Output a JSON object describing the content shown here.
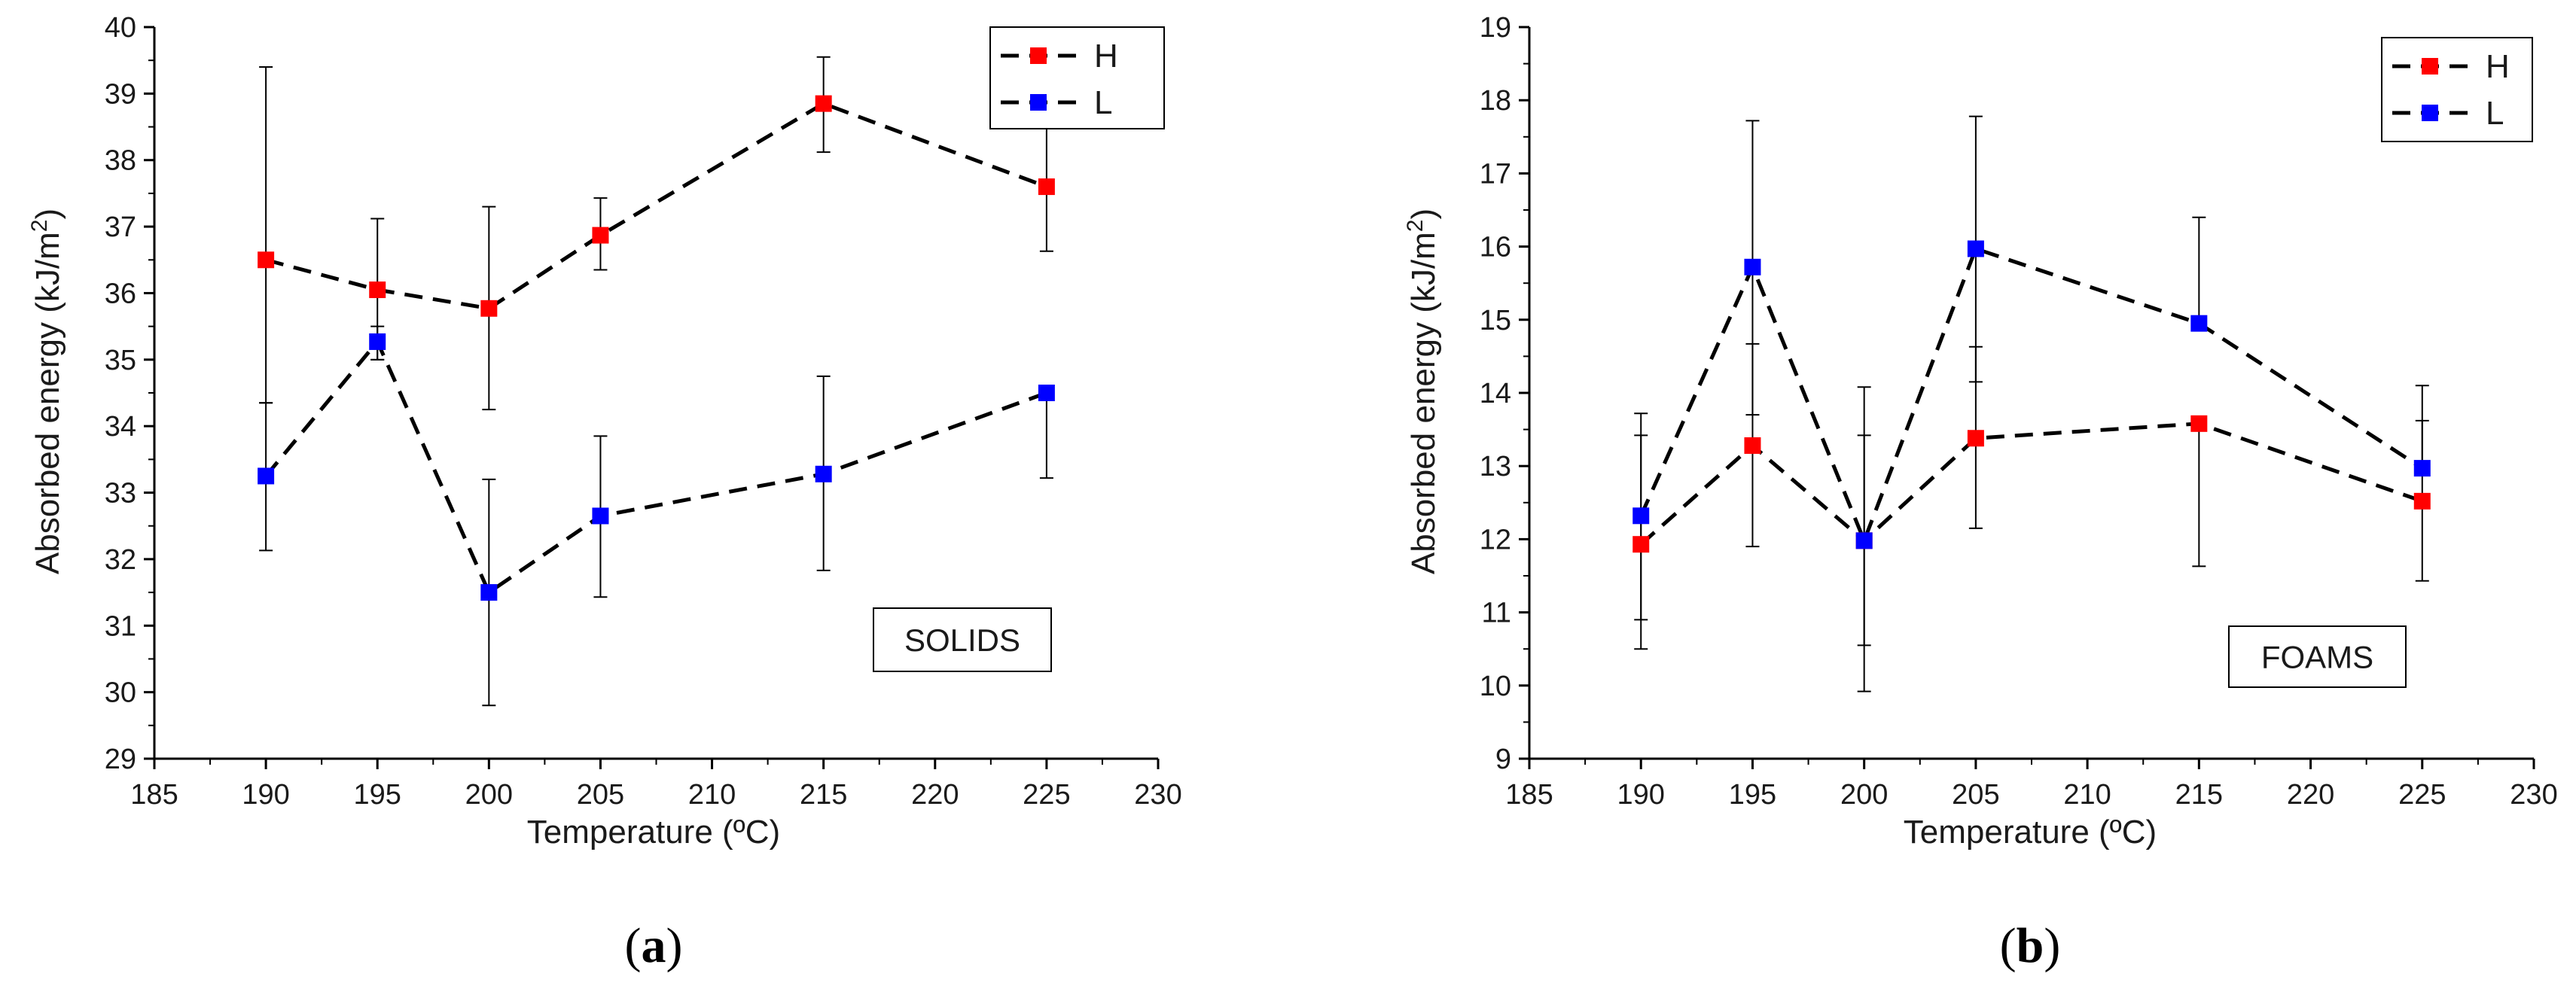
{
  "chart_data": [
    {
      "type": "line",
      "panel": "a",
      "caption_open": "(",
      "caption_letter": "a",
      "caption_close": ")",
      "annotation": "SOLIDS",
      "xlabel": "Temperature (ºC)",
      "ylabel": "Absorbed energy (kJ/m",
      "ylabel_sup": "2",
      "ylabel_close": ")",
      "xlim": [
        185,
        230
      ],
      "ylim": [
        29,
        40
      ],
      "xticks": [
        "185",
        "190",
        "195",
        "200",
        "205",
        "210",
        "215",
        "220",
        "225",
        "230"
      ],
      "yticks": [
        "29",
        "30",
        "31",
        "32",
        "33",
        "34",
        "35",
        "36",
        "37",
        "38",
        "39",
        "40"
      ],
      "legend_position": "top-right",
      "series": [
        {
          "name": "H",
          "color": "#ff0000",
          "x": [
            190,
            195,
            200,
            205,
            215,
            225
          ],
          "values": [
            36.5,
            36.05,
            35.77,
            36.87,
            38.85,
            37.6
          ],
          "err_low": [
            34.35,
            35.0,
            34.25,
            36.35,
            38.12,
            36.63
          ],
          "err_high": [
            39.4,
            37.12,
            37.3,
            37.43,
            39.55,
            38.55
          ]
        },
        {
          "name": "L",
          "color": "#0000ff",
          "x": [
            190,
            195,
            200,
            205,
            215,
            225
          ],
          "values": [
            33.25,
            35.27,
            31.5,
            32.65,
            33.28,
            34.5
          ],
          "err_low": [
            32.13,
            35.0,
            29.8,
            31.43,
            31.83,
            33.22
          ],
          "err_high": [
            34.35,
            35.5,
            33.2,
            33.85,
            34.75,
            34.5
          ]
        }
      ]
    },
    {
      "type": "line",
      "panel": "b",
      "caption_open": "(",
      "caption_letter": "b",
      "caption_close": ")",
      "annotation": "FOAMS",
      "xlabel": "Temperature (ºC)",
      "ylabel": "Absorbed energy (kJ/m",
      "ylabel_sup": "2",
      "ylabel_close": ")",
      "xlim": [
        185,
        230
      ],
      "ylim": [
        9,
        19
      ],
      "xticks": [
        "185",
        "190",
        "195",
        "200",
        "205",
        "210",
        "215",
        "220",
        "225",
        "230"
      ],
      "yticks": [
        "9",
        "10",
        "11",
        "12",
        "13",
        "14",
        "15",
        "16",
        "17",
        "18",
        "19"
      ],
      "legend_position": "top-right",
      "series": [
        {
          "name": "H",
          "color": "#ff0000",
          "x": [
            190,
            195,
            200,
            205,
            215,
            225
          ],
          "values": [
            11.93,
            13.28,
            11.98,
            13.38,
            13.58,
            12.52
          ],
          "err_low": [
            10.9,
            11.9,
            10.55,
            12.15,
            11.63,
            11.43
          ],
          "err_high": [
            13.42,
            14.67,
            13.42,
            14.63,
            13.58,
            13.62
          ]
        },
        {
          "name": "L",
          "color": "#0000ff",
          "x": [
            190,
            195,
            200,
            205,
            215,
            225
          ],
          "values": [
            12.32,
            15.72,
            11.98,
            15.97,
            14.95,
            12.97
          ],
          "err_low": [
            10.5,
            13.7,
            9.92,
            14.15,
            14.95,
            12.97
          ],
          "err_high": [
            13.72,
            17.72,
            14.08,
            17.78,
            16.4,
            14.1
          ]
        }
      ]
    }
  ]
}
